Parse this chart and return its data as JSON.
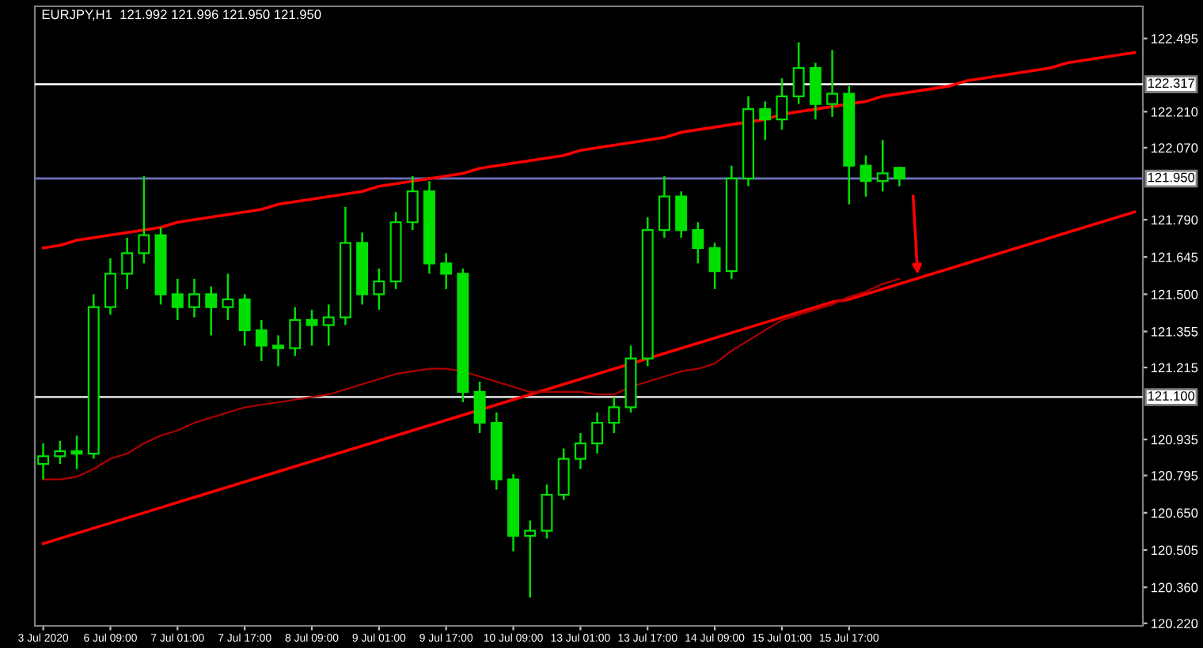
{
  "chart_data": {
    "type": "candlestick",
    "title": "EURJPY,H1  121.992 121.996 121.950 121.950",
    "categories": [
      "3 Jul 2020",
      null,
      null,
      null,
      "6 Jul 09:00",
      null,
      null,
      null,
      "7 Jul 01:00",
      null,
      null,
      null,
      "7 Jul 17:00",
      null,
      null,
      null,
      "8 Jul 09:00",
      null,
      null,
      null,
      "9 Jul 01:00",
      null,
      null,
      null,
      "9 Jul 17:00",
      null,
      null,
      null,
      "10 Jul 09:00",
      null,
      null,
      null,
      "13 Jul 01:00",
      null,
      null,
      null,
      "13 Jul 17:00",
      null,
      null,
      null,
      "14 Jul 09:00",
      null,
      null,
      null,
      "15 Jul 01:00",
      null,
      null,
      null,
      "15 Jul 17:00",
      null,
      null,
      null,
      null,
      null,
      null,
      null,
      null,
      null,
      null,
      null,
      null,
      null,
      null,
      null,
      null,
      null
    ],
    "ohlc": [
      [
        120.84,
        120.92,
        120.78,
        120.87
      ],
      [
        120.87,
        120.93,
        120.84,
        120.89
      ],
      [
        120.89,
        120.95,
        120.82,
        120.88
      ],
      [
        120.88,
        121.5,
        120.86,
        121.45
      ],
      [
        121.45,
        121.64,
        121.42,
        121.58
      ],
      [
        121.58,
        121.72,
        121.52,
        121.66
      ],
      [
        121.66,
        121.96,
        121.62,
        121.73
      ],
      [
        121.73,
        121.76,
        121.46,
        121.5
      ],
      [
        121.5,
        121.56,
        121.4,
        121.45
      ],
      [
        121.45,
        121.56,
        121.41,
        121.5
      ],
      [
        121.5,
        121.53,
        121.34,
        121.45
      ],
      [
        121.45,
        121.58,
        121.4,
        121.48
      ],
      [
        121.48,
        121.5,
        121.3,
        121.36
      ],
      [
        121.36,
        121.4,
        121.24,
        121.3
      ],
      [
        121.3,
        121.34,
        121.22,
        121.29
      ],
      [
        121.29,
        121.45,
        121.26,
        121.4
      ],
      [
        121.4,
        121.44,
        121.3,
        121.38
      ],
      [
        121.38,
        121.46,
        121.3,
        121.41
      ],
      [
        121.41,
        121.84,
        121.38,
        121.7
      ],
      [
        121.7,
        121.74,
        121.46,
        121.5
      ],
      [
        121.5,
        121.6,
        121.44,
        121.55
      ],
      [
        121.55,
        121.82,
        121.52,
        121.78
      ],
      [
        121.78,
        121.96,
        121.75,
        121.9
      ],
      [
        121.9,
        121.94,
        121.58,
        121.62
      ],
      [
        121.62,
        121.66,
        121.52,
        121.58
      ],
      [
        121.58,
        121.6,
        121.08,
        121.12
      ],
      [
        121.12,
        121.16,
        120.96,
        121.0
      ],
      [
        121.0,
        121.04,
        120.74,
        120.78
      ],
      [
        120.78,
        120.8,
        120.5,
        120.56
      ],
      [
        120.56,
        120.62,
        120.32,
        120.58
      ],
      [
        120.58,
        120.76,
        120.55,
        120.72
      ],
      [
        120.72,
        120.9,
        120.7,
        120.86
      ],
      [
        120.86,
        120.96,
        120.82,
        120.92
      ],
      [
        120.92,
        121.04,
        120.88,
        121.0
      ],
      [
        121.0,
        121.1,
        120.96,
        121.06
      ],
      [
        121.06,
        121.3,
        121.04,
        121.25
      ],
      [
        121.25,
        121.8,
        121.22,
        121.75
      ],
      [
        121.75,
        121.96,
        121.72,
        121.88
      ],
      [
        121.88,
        121.9,
        121.72,
        121.75
      ],
      [
        121.75,
        121.78,
        121.62,
        121.68
      ],
      [
        121.68,
        121.7,
        121.52,
        121.59
      ],
      [
        121.59,
        122.0,
        121.56,
        121.95
      ],
      [
        121.95,
        122.27,
        121.92,
        122.22
      ],
      [
        122.22,
        122.25,
        122.1,
        122.18
      ],
      [
        122.18,
        122.34,
        122.14,
        122.27
      ],
      [
        122.27,
        122.48,
        122.24,
        122.38
      ],
      [
        122.38,
        122.4,
        122.18,
        122.24
      ],
      [
        122.24,
        122.45,
        122.19,
        122.28
      ],
      [
        122.28,
        122.31,
        121.85,
        122.0
      ],
      [
        122.0,
        122.04,
        121.88,
        121.94
      ],
      [
        121.94,
        122.1,
        121.9,
        121.97
      ],
      [
        121.992,
        121.996,
        121.92,
        121.95
      ],
      null,
      null,
      null,
      null,
      null,
      null,
      null,
      null,
      null,
      null,
      null,
      null,
      null,
      null
    ],
    "color": "#00e000",
    "series": [
      {
        "type": "line",
        "color": "#ff0000",
        "values": [
          121.68,
          121.69,
          121.71,
          121.72,
          121.73,
          121.74,
          121.75,
          121.76,
          121.78,
          121.79,
          121.8,
          121.81,
          121.82,
          121.83,
          121.85,
          121.86,
          121.87,
          121.88,
          121.89,
          121.9,
          121.92,
          121.93,
          121.94,
          121.95,
          121.96,
          121.97,
          121.99,
          122.0,
          122.01,
          122.02,
          122.03,
          122.04,
          122.06,
          122.07,
          122.08,
          122.09,
          122.1,
          122.11,
          122.13,
          122.14,
          122.15,
          122.16,
          122.17,
          122.18,
          122.2,
          122.21,
          122.22,
          122.23,
          122.24,
          122.25,
          122.27,
          122.28,
          122.29,
          122.3,
          122.31,
          122.33,
          122.34,
          122.35,
          122.36,
          122.37,
          122.38,
          122.4,
          122.41,
          122.42,
          122.43,
          122.44
        ]
      },
      {
        "type": "line",
        "color": "#ff0000",
        "values": [
          120.53,
          120.55,
          120.57,
          120.59,
          120.61,
          120.63,
          120.65,
          120.67,
          120.69,
          120.71,
          120.73,
          120.75,
          120.77,
          120.79,
          120.81,
          120.83,
          120.85,
          120.87,
          120.89,
          120.91,
          120.93,
          120.95,
          120.97,
          120.99,
          121.01,
          121.03,
          121.05,
          121.07,
          121.09,
          121.11,
          121.13,
          121.15,
          121.17,
          121.19,
          121.21,
          121.23,
          121.25,
          121.27,
          121.29,
          121.31,
          121.33,
          121.35,
          121.37,
          121.39,
          121.41,
          121.43,
          121.45,
          121.47,
          121.48,
          121.5,
          121.52,
          121.54,
          121.56,
          121.58,
          121.6,
          121.62,
          121.64,
          121.66,
          121.68,
          121.7,
          121.72,
          121.74,
          121.76,
          121.78,
          121.8,
          121.82
        ]
      },
      {
        "type": "line",
        "color": "#b00000",
        "values": [
          120.78,
          120.78,
          120.79,
          120.82,
          120.86,
          120.88,
          120.92,
          120.95,
          120.97,
          121.0,
          121.02,
          121.04,
          121.06,
          121.07,
          121.08,
          121.09,
          121.1,
          121.11,
          121.13,
          121.15,
          121.17,
          121.19,
          121.2,
          121.21,
          121.21,
          121.2,
          121.18,
          121.16,
          121.14,
          121.12,
          121.12,
          121.12,
          121.12,
          121.11,
          121.11,
          121.14,
          121.16,
          121.18,
          121.2,
          121.21,
          121.23,
          121.28,
          121.32,
          121.36,
          121.4,
          121.42,
          121.44,
          121.46,
          121.49,
          121.51,
          121.54,
          121.56,
          null,
          null,
          null,
          null,
          null,
          null,
          null,
          null,
          null,
          null,
          null,
          null,
          null,
          null
        ]
      }
    ],
    "ylim": [
      120.21,
      122.62
    ],
    "yticks": [
      {
        "value": 122.495,
        "label": "122.495"
      },
      {
        "value": 122.21,
        "label": "122.210"
      },
      {
        "value": 122.07,
        "label": "122.070"
      },
      {
        "value": 121.79,
        "label": "121.790"
      },
      {
        "value": 121.645,
        "label": "121.645"
      },
      {
        "value": 121.5,
        "label": "121.500"
      },
      {
        "value": 121.355,
        "label": "121.355"
      },
      {
        "value": 121.215,
        "label": "121.215"
      },
      {
        "value": 120.935,
        "label": "120.935"
      },
      {
        "value": 120.795,
        "label": "120.795"
      },
      {
        "value": 120.65,
        "label": "120.650"
      },
      {
        "value": 120.505,
        "label": "120.505"
      },
      {
        "value": 120.36,
        "label": "120.360"
      },
      {
        "value": 120.22,
        "label": "120.220"
      }
    ],
    "ref_lines": [
      {
        "axis": "y",
        "value": 122.317,
        "label": "122.317",
        "color": "#ffffff"
      },
      {
        "axis": "y",
        "value": 121.95,
        "label": "121.950",
        "color": "#7070c0"
      },
      {
        "axis": "y",
        "value": 121.1,
        "label": "121.100",
        "color": "#d0d0d0"
      }
    ],
    "grid": false,
    "legend": false
  }
}
